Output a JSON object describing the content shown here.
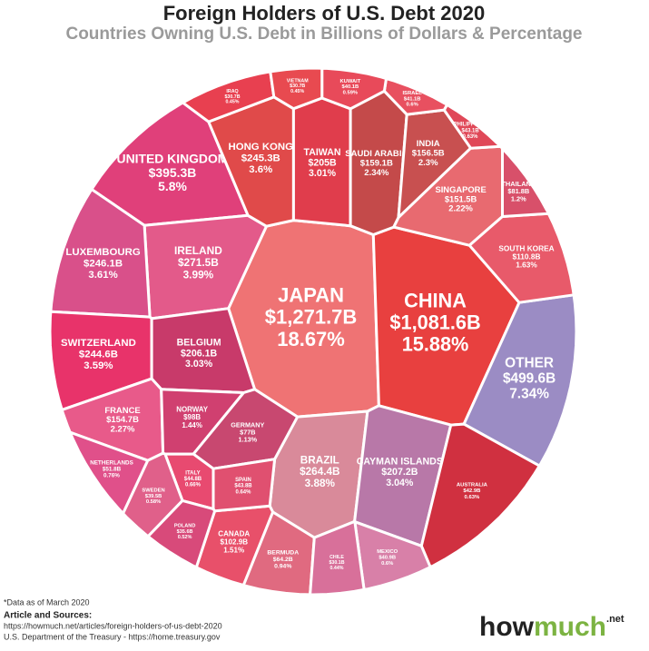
{
  "chart_data": {
    "type": "voronoi-treemap",
    "title": "Foreign Holders of U.S. Debt 2020",
    "subtitle": "Countries Owning U.S. Debt in Billions of Dollars & Percentage",
    "categories": [
      "JAPAN",
      "CHINA",
      "OTHER",
      "UNITED KINGDOM",
      "IRELAND",
      "BRAZIL",
      "LUXEMBOURG",
      "HONG KONG",
      "SWITZERLAND",
      "CAYMAN ISLANDS",
      "BELGIUM",
      "TAIWAN",
      "SAUDI ARABIA",
      "INDIA",
      "FRANCE",
      "SINGAPORE",
      "SOUTH KOREA",
      "CANADA",
      "NORWAY",
      "THAILAND",
      "GERMANY",
      "BERMUDA",
      "NETHERLANDS",
      "ITALY",
      "SPAIN",
      "PHILIPPINES",
      "AUSTRALIA",
      "ISRAEL",
      "MEXICO",
      "KUWAIT",
      "SWEDEN",
      "POLAND",
      "IRAQ",
      "CHILE",
      "VIETNAM"
    ],
    "values": [
      1271.7,
      1081.6,
      499.6,
      395.3,
      271.5,
      264.4,
      246.1,
      245.3,
      244.6,
      207.2,
      206.1,
      205,
      159.1,
      156.5,
      154.7,
      151.5,
      110.8,
      102.9,
      98,
      81.8,
      77,
      64.2,
      51.8,
      44.8,
      43.8,
      43.1,
      42.9,
      41.1,
      40.9,
      40.1,
      39.5,
      35.6,
      30.7,
      30.1,
      30.7
    ],
    "value_labels": [
      "$1,271.7B",
      "$1,081.6B",
      "$499.6B",
      "$395.3B",
      "$271.5B",
      "$264.4B",
      "$246.1B",
      "$245.3B",
      "$244.6B",
      "$207.2B",
      "$206.1B",
      "$205B",
      "$159.1B",
      "$156.5B",
      "$154.7B",
      "$151.5B",
      "$110.8B",
      "$102.9B",
      "$98B",
      "$81.8B",
      "$77B",
      "$64.2B",
      "$51.8B",
      "$44.8B",
      "$43.8B",
      "$43.1B",
      "$42.9B",
      "$41.1B",
      "$40.9B",
      "$40.1B",
      "$39.5B",
      "$35.6B",
      "$30.7B",
      "$30.1B",
      "$30.7B"
    ],
    "shares": [
      18.67,
      15.88,
      7.34,
      5.8,
      3.99,
      3.88,
      3.61,
      3.6,
      3.59,
      3.04,
      3.03,
      3.01,
      2.34,
      2.3,
      2.27,
      2.22,
      1.63,
      1.51,
      1.44,
      1.2,
      1.13,
      0.94,
      0.76,
      0.66,
      0.64,
      0.63,
      0.63,
      0.6,
      0.6,
      0.59,
      0.58,
      0.52,
      0.45,
      0.44,
      0.45
    ],
    "share_labels": [
      "18.67%",
      "15.88%",
      "7.34%",
      "5.8%",
      "3.99%",
      "3.88%",
      "3.61%",
      "3.6%",
      "3.59%",
      "3.04%",
      "3.03%",
      "3.01%",
      "2.34%",
      "2.3%",
      "2.27%",
      "2.22%",
      "1.63%",
      "1.51%",
      "1.44%",
      "1.2%",
      "1.13%",
      "0.94%",
      "0.76%",
      "0.66%",
      "0.64%",
      "0.63%",
      "0.63%",
      "0.6%",
      "0.6%",
      "0.59%",
      "0.58%",
      "0.52%",
      "0.45%",
      "0.44%",
      "0.45%"
    ],
    "colors": [
      "#ef7374",
      "#e8403f",
      "#9b8cc4",
      "#e0407a",
      "#e35a8a",
      "#d98a9a",
      "#d9508a",
      "#e04a4a",
      "#e8336a",
      "#b878a8",
      "#c83a6a",
      "#e03d4c",
      "#c44a4a",
      "#c85050",
      "#e85a8a",
      "#e86a70",
      "#e85a6a",
      "#e8506a",
      "#d04070",
      "#d8506a",
      "#c84870",
      "#e06a80",
      "#e0508a",
      "#e84a70",
      "#e05070",
      "#e04858",
      "#d03040",
      "#e85060",
      "#d880a8",
      "#e84a5a",
      "#e0608a",
      "#d84a7a",
      "#e84050",
      "#d8709a",
      "#e84a50"
    ]
  },
  "notes": {
    "data_note": "*Data as of March 2020",
    "sources_heading": "Article and Sources:",
    "source_1": "https://howmuch.net/articles/foreign-holders-of-us-debt-2020",
    "source_2": "U.S. Department of the Treasury - https://home.treasury.gov"
  },
  "logo": {
    "how": "how",
    "much": "much",
    "net": ".net"
  }
}
